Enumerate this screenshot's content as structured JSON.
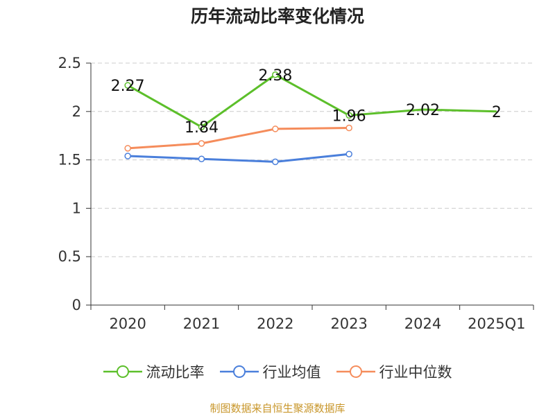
{
  "title": "历年流动比率变化情况",
  "source": "制图数据来自恒生聚源数据库",
  "colors": {
    "source": "#c8962a",
    "axis": "#333333",
    "grid": "#cccccc"
  },
  "chart_data": {
    "type": "line",
    "title": "历年流动比率变化情况",
    "categories": [
      "2020",
      "2021",
      "2022",
      "2023",
      "2024",
      "2025Q1"
    ],
    "ylim": [
      0,
      2.5
    ],
    "yticks": [
      0,
      0.5,
      1,
      1.5,
      2,
      2.5
    ],
    "ytick_labels": [
      "0",
      "0.5",
      "1",
      "1.5",
      "2",
      "2.5"
    ],
    "grid": true,
    "legend": "bottom",
    "series": [
      {
        "name": "流动比率",
        "color": "#5cbf2a",
        "values": [
          2.27,
          1.84,
          2.38,
          1.96,
          2.02,
          2
        ],
        "labels": [
          "2.27",
          "1.84",
          "2.38",
          "1.96",
          "2.02",
          "2"
        ],
        "markers": [
          true,
          true,
          true,
          true,
          false,
          false
        ]
      },
      {
        "name": "行业均值",
        "color": "#4a7fdb",
        "values": [
          1.54,
          1.51,
          1.48,
          1.56,
          null,
          null
        ],
        "labels": [],
        "markers": [
          true,
          true,
          true,
          true,
          false,
          false
        ]
      },
      {
        "name": "行业中位数",
        "color": "#f58c5b",
        "values": [
          1.62,
          1.67,
          1.82,
          1.83,
          null,
          null
        ],
        "labels": [],
        "markers": [
          true,
          true,
          true,
          true,
          false,
          false
        ]
      }
    ]
  }
}
